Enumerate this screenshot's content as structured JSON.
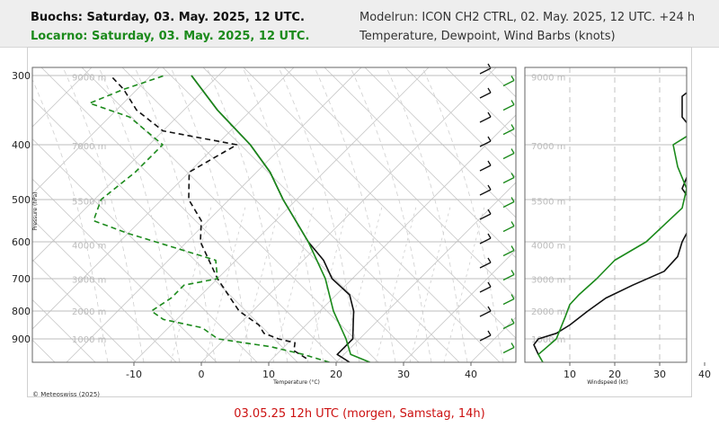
{
  "header": {
    "station1": "Buochs: Saturday, 03. May. 2025, 12 UTC.",
    "station2": "Locarno: Saturday, 03. May. 2025, 12 UTC.",
    "model_run": "Modelrun: ICON CH2 CTRL, 02. May. 2025, 12 UTC. +24 h",
    "variables": "Temperature, Dewpoint, Wind Barbs (knots)"
  },
  "colors": {
    "station1": "#111111",
    "station2": "#1b8a1b",
    "footer": "#cc1111",
    "grid": "#c8c8c8"
  },
  "chart_data": [
    {
      "type": "line",
      "name": "skew-t",
      "xlabel": "Temperature (°C)",
      "ylabel": "Pressure (hPa)",
      "x_ticks": [
        -10,
        0,
        10,
        20,
        30,
        40
      ],
      "y_ticks": [
        300,
        400,
        500,
        600,
        700,
        800,
        900
      ],
      "ylim": [
        960,
        290
      ],
      "height_labels": [
        {
          "p": 302,
          "text": "9000 m"
        },
        {
          "p": 402,
          "text": "7000 m"
        },
        {
          "p": 503,
          "text": "5500 m"
        },
        {
          "p": 608,
          "text": "4000 m"
        },
        {
          "p": 702,
          "text": "3000 m"
        },
        {
          "p": 800,
          "text": "2000 m"
        },
        {
          "p": 900,
          "text": "1000 m"
        }
      ],
      "series": [
        {
          "name": "Buochs temperature",
          "color": "#111111",
          "dash": false,
          "points": [
            [
              960,
              22
            ],
            [
              940,
              19
            ],
            [
              920,
              19
            ],
            [
              900,
              19
            ],
            [
              850,
              17
            ],
            [
              800,
              15
            ],
            [
              750,
              12
            ],
            [
              700,
              7
            ],
            [
              650,
              3
            ],
            [
              600,
              -2
            ],
            [
              550,
              -7
            ],
            [
              500,
              -12
            ],
            [
              450,
              -18
            ],
            [
              400,
              -25
            ],
            [
              350,
              -35
            ],
            [
              300,
              -44
            ]
          ]
        },
        {
          "name": "Buochs dewpoint",
          "color": "#111111",
          "dash": true,
          "points": [
            [
              950,
              15
            ],
            [
              930,
              12
            ],
            [
              910,
              11
            ],
            [
              900,
              8
            ],
            [
              880,
              5
            ],
            [
              850,
              3
            ],
            [
              800,
              -2
            ],
            [
              750,
              -6
            ],
            [
              700,
              -10
            ],
            [
              650,
              -14
            ],
            [
              600,
              -18
            ],
            [
              550,
              -21
            ],
            [
              500,
              -26
            ],
            [
              450,
              -30
            ],
            [
              400,
              -27
            ],
            [
              380,
              -40
            ],
            [
              350,
              -47
            ],
            [
              320,
              -52
            ],
            [
              300,
              -56
            ]
          ]
        },
        {
          "name": "Locarno temperature",
          "color": "#1b8a1b",
          "dash": false,
          "points": [
            [
              960,
              25
            ],
            [
              940,
              21
            ],
            [
              900,
              18
            ],
            [
              850,
              15
            ],
            [
              800,
              12
            ],
            [
              750,
              9
            ],
            [
              700,
              6
            ],
            [
              650,
              2
            ],
            [
              600,
              -2
            ],
            [
              550,
              -7
            ],
            [
              500,
              -12
            ],
            [
              450,
              -18
            ],
            [
              400,
              -25
            ],
            [
              350,
              -35
            ],
            [
              300,
              -44
            ]
          ]
        },
        {
          "name": "Locarno dewpoint",
          "color": "#1b8a1b",
          "dash": true,
          "points": [
            [
              960,
              19
            ],
            [
              940,
              14
            ],
            [
              920,
              8
            ],
            [
              900,
              -1
            ],
            [
              860,
              -5
            ],
            [
              830,
              -12
            ],
            [
              800,
              -15
            ],
            [
              760,
              -14
            ],
            [
              720,
              -14
            ],
            [
              700,
              -10
            ],
            [
              650,
              -13
            ],
            [
              620,
              -20
            ],
            [
              580,
              -30
            ],
            [
              550,
              -37
            ],
            [
              500,
              -39
            ],
            [
              450,
              -38
            ],
            [
              400,
              -38
            ],
            [
              360,
              -47
            ],
            [
              340,
              -55
            ],
            [
              320,
              -52
            ],
            [
              300,
              -48
            ]
          ]
        }
      ]
    },
    {
      "type": "line",
      "name": "wind-profile",
      "xlabel": "Windspeed (kt)",
      "x_ticks": [
        10,
        20,
        30,
        40
      ],
      "xlim": [
        0,
        50
      ],
      "height_labels": [
        "9000 m",
        "7000 m",
        "5500 m",
        "4000 m",
        "3000 m",
        "2000 m",
        "1000 m"
      ],
      "series": [
        {
          "name": "Buochs windspeed",
          "color": "#111111",
          "points": [
            [
              940,
              3
            ],
            [
              915,
              2
            ],
            [
              900,
              3
            ],
            [
              880,
              7
            ],
            [
              850,
              10
            ],
            [
              800,
              14
            ],
            [
              760,
              18
            ],
            [
              720,
              24
            ],
            [
              680,
              31
            ],
            [
              640,
              34
            ],
            [
              600,
              35
            ],
            [
              560,
              37
            ],
            [
              520,
              38
            ],
            [
              480,
              35
            ],
            [
              440,
              37
            ],
            [
              400,
              40
            ],
            [
              360,
              35
            ],
            [
              330,
              35
            ],
            [
              310,
              39
            ],
            [
              295,
              44
            ]
          ]
        },
        {
          "name": "Locarno windspeed",
          "color": "#1b8a1b",
          "points": [
            [
              960,
              4
            ],
            [
              940,
              3
            ],
            [
              920,
              5
            ],
            [
              900,
              7
            ],
            [
              860,
              8
            ],
            [
              820,
              9
            ],
            [
              780,
              10
            ],
            [
              750,
              12
            ],
            [
              700,
              16
            ],
            [
              650,
              20
            ],
            [
              600,
              27
            ],
            [
              560,
              31
            ],
            [
              520,
              35
            ],
            [
              480,
              36
            ],
            [
              440,
              34
            ],
            [
              400,
              33
            ],
            [
              380,
              38
            ],
            [
              350,
              45
            ],
            [
              330,
              49
            ]
          ]
        }
      ]
    }
  ],
  "footer": {
    "copyright": "© Meteoswiss (2025)",
    "validity": "03.05.25 12h UTC (morgen, Samstag, 14h)"
  }
}
